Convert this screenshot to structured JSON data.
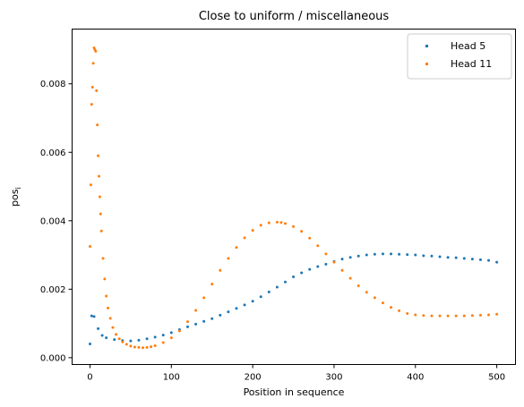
{
  "chart_data": {
    "type": "scatter",
    "title": "Close to uniform / miscellaneous",
    "xlabel": "Position in sequence",
    "ylabel_main": "pos",
    "ylabel_sub": "i",
    "xlim": [
      -22,
      523
    ],
    "ylim": [
      -0.0002,
      0.0096
    ],
    "xticks": [
      0,
      100,
      200,
      300,
      400,
      500
    ],
    "xtick_labels": [
      "0",
      "100",
      "200",
      "300",
      "400",
      "500"
    ],
    "yticks": [
      0.0,
      0.002,
      0.004,
      0.006,
      0.008
    ],
    "ytick_labels": [
      "0.000",
      "0.002",
      "0.004",
      "0.006",
      "0.008"
    ],
    "grid": false,
    "legend_position": "top-right",
    "series": [
      {
        "name": "Head 5",
        "color": "#1f77b4",
        "x": [
          0,
          2,
          5,
          10,
          15,
          20,
          30,
          40,
          50,
          60,
          70,
          80,
          90,
          100,
          110,
          120,
          130,
          140,
          150,
          160,
          170,
          180,
          190,
          200,
          210,
          220,
          230,
          240,
          250,
          260,
          270,
          280,
          290,
          300,
          310,
          320,
          330,
          340,
          350,
          360,
          370,
          380,
          390,
          400,
          410,
          420,
          430,
          440,
          450,
          460,
          470,
          480,
          490,
          500
        ],
        "y": [
          0.0004,
          0.00122,
          0.0012,
          0.00085,
          0.00065,
          0.00058,
          0.00053,
          0.0005,
          0.00049,
          0.00051,
          0.00055,
          0.0006,
          0.00066,
          0.00073,
          0.00082,
          0.0009,
          0.00098,
          0.00106,
          0.00114,
          0.00124,
          0.00134,
          0.00144,
          0.00154,
          0.00165,
          0.00178,
          0.00192,
          0.00206,
          0.00221,
          0.00236,
          0.00248,
          0.00258,
          0.00266,
          0.00273,
          0.00281,
          0.00288,
          0.00293,
          0.00297,
          0.003,
          0.00302,
          0.00303,
          0.00303,
          0.00302,
          0.00301,
          0.003,
          0.00298,
          0.00297,
          0.00295,
          0.00293,
          0.00292,
          0.0029,
          0.00288,
          0.00286,
          0.00284,
          0.00279
        ]
      },
      {
        "name": "Head 11",
        "color": "#ff7f0e",
        "x": [
          0,
          1,
          2,
          3,
          4,
          5,
          6,
          7,
          8,
          9,
          10,
          11,
          12,
          13,
          14,
          16,
          18,
          20,
          22,
          25,
          28,
          32,
          36,
          40,
          45,
          50,
          55,
          60,
          65,
          70,
          75,
          80,
          90,
          100,
          110,
          120,
          130,
          140,
          150,
          160,
          170,
          180,
          190,
          200,
          210,
          220,
          230,
          235,
          240,
          250,
          260,
          270,
          280,
          290,
          300,
          310,
          320,
          330,
          340,
          350,
          360,
          370,
          380,
          390,
          400,
          410,
          420,
          430,
          440,
          450,
          460,
          470,
          480,
          490,
          500
        ],
        "y": [
          0.00325,
          0.00505,
          0.0074,
          0.0079,
          0.0086,
          0.00905,
          0.009,
          0.00895,
          0.0078,
          0.0068,
          0.0059,
          0.0053,
          0.0047,
          0.0042,
          0.0037,
          0.0029,
          0.0023,
          0.0018,
          0.00145,
          0.00115,
          0.00088,
          0.00068,
          0.00055,
          0.00046,
          0.00039,
          0.00034,
          0.00031,
          0.0003,
          0.00029,
          0.0003,
          0.00032,
          0.00035,
          0.00044,
          0.00058,
          0.00078,
          0.00105,
          0.00138,
          0.00175,
          0.00215,
          0.00255,
          0.0029,
          0.00322,
          0.0035,
          0.00372,
          0.00387,
          0.00394,
          0.00396,
          0.00395,
          0.00392,
          0.00383,
          0.00369,
          0.00349,
          0.00327,
          0.00303,
          0.00279,
          0.00255,
          0.00232,
          0.0021,
          0.00191,
          0.00175,
          0.0016,
          0.00147,
          0.00137,
          0.00129,
          0.00125,
          0.00123,
          0.00122,
          0.00122,
          0.00122,
          0.00122,
          0.00122,
          0.00123,
          0.00124,
          0.00125,
          0.00127
        ]
      }
    ]
  }
}
